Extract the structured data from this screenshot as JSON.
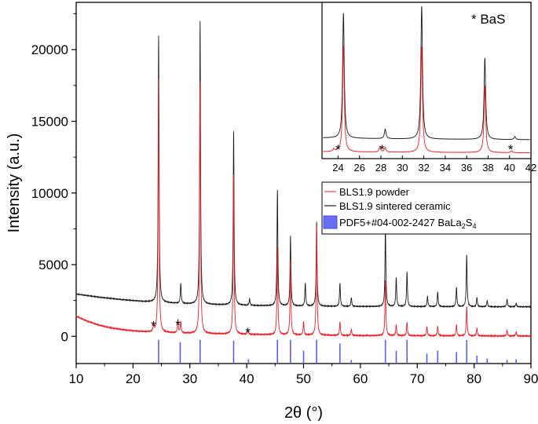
{
  "chart_data": {
    "type": "line",
    "xlabel": "2θ (°)",
    "ylabel": "Intensity (a.u.)",
    "xlim": [
      10,
      90
    ],
    "ylim": [
      -1900,
      23300
    ],
    "x_ticks": [
      10,
      20,
      30,
      40,
      50,
      60,
      70,
      80,
      90
    ],
    "y_ticks": [
      0,
      5000,
      10000,
      15000,
      20000
    ],
    "series": [
      {
        "name": "BLS1.9 powder",
        "color": "#e8202a",
        "baseline": [
          [
            10,
            1400
          ],
          [
            12,
            1050
          ],
          [
            14,
            780
          ],
          [
            16,
            600
          ],
          [
            18,
            470
          ],
          [
            20,
            380
          ],
          [
            23,
            290
          ],
          [
            30,
            200
          ],
          [
            40,
            130
          ],
          [
            50,
            80
          ],
          [
            60,
            50
          ],
          [
            70,
            40
          ],
          [
            80,
            30
          ],
          [
            90,
            20
          ]
        ],
        "peaks": [
          {
            "x": 23.6,
            "y": 700
          },
          {
            "x": 24.5,
            "y": 18000
          },
          {
            "x": 27.9,
            "y": 1150
          },
          {
            "x": 28.4,
            "y": 1000
          },
          {
            "x": 31.8,
            "y": 17800
          },
          {
            "x": 37.7,
            "y": 11300
          },
          {
            "x": 40.2,
            "y": 450
          },
          {
            "x": 45.4,
            "y": 6200
          },
          {
            "x": 47.7,
            "y": 5300
          },
          {
            "x": 50.0,
            "y": 1000
          },
          {
            "x": 52.3,
            "y": 7700
          },
          {
            "x": 56.4,
            "y": 1000
          },
          {
            "x": 58.4,
            "y": 500
          },
          {
            "x": 64.4,
            "y": 3900
          },
          {
            "x": 66.3,
            "y": 800
          },
          {
            "x": 68.2,
            "y": 1000
          },
          {
            "x": 71.7,
            "y": 650
          },
          {
            "x": 73.6,
            "y": 700
          },
          {
            "x": 76.9,
            "y": 800
          },
          {
            "x": 78.7,
            "y": 2100
          },
          {
            "x": 80.5,
            "y": 550
          },
          {
            "x": 85.8,
            "y": 450
          },
          {
            "x": 87.4,
            "y": 300
          }
        ]
      },
      {
        "name": "BLS1.9 sintered ceramic",
        "color": "#1a1a1a",
        "baseline": [
          [
            10,
            2950
          ],
          [
            14,
            2730
          ],
          [
            18,
            2560
          ],
          [
            22,
            2420
          ],
          [
            26,
            2330
          ],
          [
            30,
            2250
          ],
          [
            40,
            2150
          ],
          [
            50,
            2100
          ],
          [
            60,
            2080
          ],
          [
            70,
            2070
          ],
          [
            80,
            2060
          ],
          [
            90,
            2060
          ]
        ],
        "peaks": [
          {
            "x": 24.5,
            "y": 21000
          },
          {
            "x": 28.4,
            "y": 3700
          },
          {
            "x": 31.8,
            "y": 22000
          },
          {
            "x": 37.7,
            "y": 14300
          },
          {
            "x": 40.5,
            "y": 2600
          },
          {
            "x": 45.4,
            "y": 10200
          },
          {
            "x": 47.7,
            "y": 7000
          },
          {
            "x": 50.3,
            "y": 3700
          },
          {
            "x": 52.3,
            "y": 8000
          },
          {
            "x": 56.4,
            "y": 3700
          },
          {
            "x": 58.4,
            "y": 2700
          },
          {
            "x": 64.4,
            "y": 7600
          },
          {
            "x": 66.3,
            "y": 4100
          },
          {
            "x": 68.2,
            "y": 4500
          },
          {
            "x": 71.8,
            "y": 2800
          },
          {
            "x": 73.6,
            "y": 3100
          },
          {
            "x": 76.9,
            "y": 3400
          },
          {
            "x": 78.7,
            "y": 5700
          },
          {
            "x": 80.5,
            "y": 2700
          },
          {
            "x": 82.3,
            "y": 2500
          },
          {
            "x": 85.8,
            "y": 2600
          },
          {
            "x": 87.4,
            "y": 2300
          }
        ]
      },
      {
        "name": "PDF5+#04-002-2427 BaLa₂S₄",
        "color": "#5a5ff0",
        "type": "stick",
        "sticks": [
          {
            "x": 24.5,
            "y": 1650
          },
          {
            "x": 28.3,
            "y": 1500
          },
          {
            "x": 31.8,
            "y": 1650
          },
          {
            "x": 37.7,
            "y": 1600
          },
          {
            "x": 40.3,
            "y": 300
          },
          {
            "x": 45.4,
            "y": 1650
          },
          {
            "x": 47.7,
            "y": 1650
          },
          {
            "x": 50.0,
            "y": 900
          },
          {
            "x": 52.3,
            "y": 1650
          },
          {
            "x": 56.4,
            "y": 1400
          },
          {
            "x": 58.4,
            "y": 250
          },
          {
            "x": 64.4,
            "y": 1650
          },
          {
            "x": 66.3,
            "y": 900
          },
          {
            "x": 68.2,
            "y": 1650
          },
          {
            "x": 71.7,
            "y": 700
          },
          {
            "x": 73.6,
            "y": 900
          },
          {
            "x": 76.9,
            "y": 800
          },
          {
            "x": 78.7,
            "y": 1650
          },
          {
            "x": 80.5,
            "y": 550
          },
          {
            "x": 82.3,
            "y": 350
          },
          {
            "x": 85.8,
            "y": 250
          },
          {
            "x": 87.4,
            "y": 300
          }
        ]
      }
    ],
    "annotations": [
      {
        "text": "*",
        "x": 23.6,
        "y": 700
      },
      {
        "text": "*",
        "x": 27.9,
        "y": 750
      },
      {
        "text": "*",
        "x": 40.2,
        "y": 250
      }
    ],
    "legend": {
      "placement": "right",
      "entries": [
        {
          "label": "BLS1.9 powder"
        },
        {
          "label": "BLS1.9 sintered ceramic"
        },
        {
          "label": "PDF5+#04-002-2427 BaLa",
          "sub": "2",
          "tail": "S",
          "sub2": "4"
        }
      ]
    },
    "inset": {
      "label": "* BaS",
      "xlim": [
        22.5,
        42
      ],
      "x_ticks": [
        24,
        26,
        28,
        30,
        32,
        34,
        36,
        38,
        40,
        42
      ],
      "star_positions": [
        24.0,
        28.1,
        40.1
      ]
    }
  }
}
